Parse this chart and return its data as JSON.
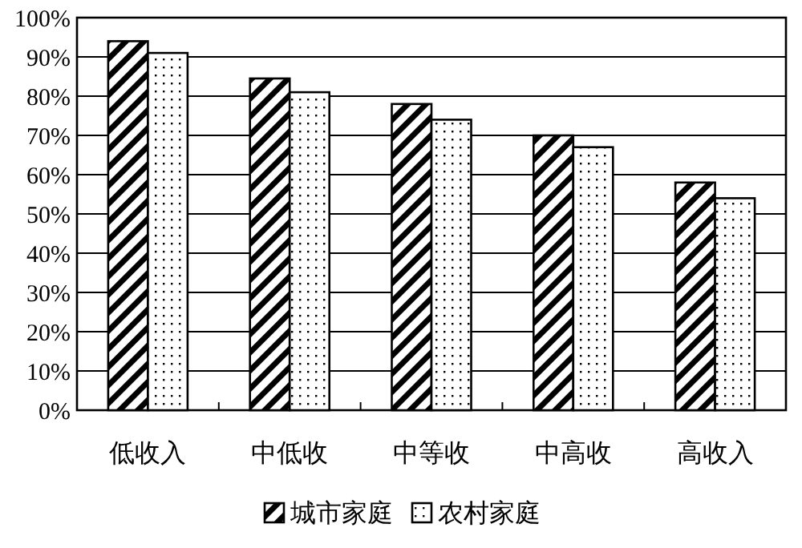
{
  "chart_data": {
    "type": "bar",
    "categories": [
      "低收入",
      "中低收",
      "中等收",
      "中高收",
      "高收入"
    ],
    "series": [
      {
        "name": "城市家庭",
        "color": "#000000",
        "values": [
          94,
          84.5,
          78,
          70,
          58
        ]
      },
      {
        "name": "农村家庭",
        "color": "#000000",
        "values": [
          91,
          81,
          74,
          67,
          54
        ]
      }
    ],
    "ylim": [
      0,
      100
    ],
    "yticks": [
      {
        "value": 0,
        "label": "0%"
      },
      {
        "value": 10,
        "label": "10%"
      },
      {
        "value": 20,
        "label": "20%"
      },
      {
        "value": 30,
        "label": "30%"
      },
      {
        "value": 40,
        "label": "40%"
      },
      {
        "value": 50,
        "label": "50%"
      },
      {
        "value": 60,
        "label": "60%"
      },
      {
        "value": 70,
        "label": "70%"
      },
      {
        "value": 80,
        "label": "80%"
      },
      {
        "value": 90,
        "label": "90%"
      },
      {
        "value": 100,
        "label": "100%"
      }
    ],
    "grid": "y",
    "legend": "bottom"
  }
}
